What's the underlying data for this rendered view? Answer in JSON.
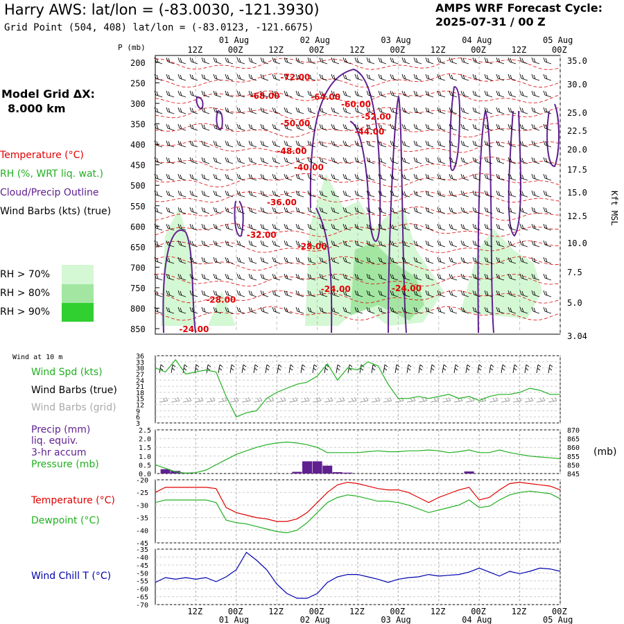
{
  "header": {
    "title": "Harry AWS:  lat/lon = (-83.0030, -121.3930)",
    "subtitle": "Grid Point (504, 408) lat/lon = (-83.0123, -121.6675)",
    "cycle_line1": "AMPS WRF Forecast Cycle:",
    "cycle_line2": "2025-07-31 / 00  Z",
    "grid_label": "Model Grid ΔX:",
    "grid_value": "8.000 km"
  },
  "legend": {
    "temperature": "Temperature (°C)",
    "rh": "RH (%, WRT liq. wat.)",
    "cloud": "Cloud/Precip Outline",
    "wind": "Wind Barbs (kts) (true)",
    "rh70": "RH > 70%",
    "rh80": "RH > 80%",
    "rh90": "RH > 90%"
  },
  "colors": {
    "temperature": "#e00000",
    "rh": "#20b020",
    "cloud": "#602090",
    "rh70": "#d4f7d4",
    "rh80": "#a2e6a2",
    "rh90": "#30d030",
    "windchill": "#0000b0",
    "grid": "#999999"
  },
  "time_axis": {
    "top_hour_labels": [
      "12Z",
      "00Z",
      "12Z",
      "00Z",
      "12Z",
      "00Z",
      "12Z",
      "00Z",
      "12Z",
      "00Z"
    ],
    "top_date_labels": [
      "01 Aug",
      "02 Aug",
      "03 Aug",
      "04 Aug",
      "05 Aug"
    ],
    "bottom_hour_labels": [
      "12Z",
      "00Z",
      "12Z",
      "00Z",
      "12Z",
      "00Z",
      "12Z",
      "00Z",
      "12Z",
      "00Z"
    ],
    "bottom_date_labels": [
      "01 Aug",
      "02 Aug",
      "03 Aug",
      "04 Aug",
      "05 Aug"
    ],
    "hours": [
      12,
      24,
      36,
      48,
      60,
      72,
      84,
      96,
      108,
      120
    ],
    "range_hours": [
      0,
      120
    ]
  },
  "chart_data": [
    {
      "type": "line",
      "name": "cross-section",
      "ylabel": "P (mb)",
      "ylabel_right": "Kft MSL",
      "y_ticks": [
        "200",
        "250",
        "300",
        "350",
        "400",
        "450",
        "500",
        "550",
        "600",
        "650",
        "700",
        "750",
        "800",
        "850"
      ],
      "y_ticks_right": [
        "35.0",
        "30.0",
        "25.0",
        "22.5",
        "20.0",
        "17.5",
        "15.0",
        "12.5",
        "10.0",
        "7.5",
        "5.0",
        "3.04"
      ],
      "contour_labels": [
        "-72.00",
        "-68.00",
        "-64.00",
        "-60.00",
        "-52.00",
        "-50.00",
        "-44.00",
        "-48.00",
        "-40.00",
        "-36.00",
        "-32.00",
        "-28.00",
        "-24.00",
        "-24.00",
        "-28.00",
        "-24.00"
      ],
      "contour_label_positions": [
        [
          42,
          235
        ],
        [
          33,
          280
        ],
        [
          51,
          283
        ],
        [
          60,
          301
        ],
        [
          66,
          331
        ],
        [
          42,
          347
        ],
        [
          64,
          368
        ],
        [
          41,
          415
        ],
        [
          46,
          455
        ],
        [
          38,
          540
        ],
        [
          32,
          620
        ],
        [
          47,
          648
        ],
        [
          54,
          752
        ],
        [
          75,
          750
        ],
        [
          20,
          778
        ],
        [
          12,
          850
        ]
      ]
    },
    {
      "type": "line",
      "name": "wind",
      "panel_label": "Wind at 10 m",
      "series": [
        {
          "name": "Wind Spd (kts)",
          "x": [
            0,
            3,
            6,
            9,
            12,
            15,
            18,
            21,
            24,
            27,
            30,
            33,
            36,
            39,
            42,
            45,
            48,
            51,
            54,
            57,
            60,
            63,
            66,
            69,
            72,
            75,
            78,
            81,
            84,
            87,
            90,
            93,
            96,
            99,
            102,
            105,
            108,
            111,
            114,
            117,
            120
          ],
          "values": [
            30,
            28,
            34,
            27,
            28,
            29,
            28,
            16,
            6,
            8,
            9,
            15,
            18,
            20,
            22,
            23,
            26,
            32,
            24,
            30,
            29,
            33,
            31,
            22,
            15,
            15,
            16,
            15,
            16,
            17,
            15,
            16,
            14,
            16,
            17,
            17,
            18,
            20,
            19,
            17,
            17
          ]
        }
      ],
      "series_labels": [
        "Wind Spd (kts)",
        "Wind Barbs (true)",
        "Wind Barbs (grid)"
      ],
      "y_ticks": [
        "36",
        "33",
        "30",
        "27",
        "24",
        "21",
        "18",
        "15",
        "12",
        "9",
        "6",
        "3"
      ],
      "ylim": [
        3,
        36
      ]
    },
    {
      "type": "bar",
      "name": "precip-pressure",
      "series_labels": [
        "Precip (mm)",
        "liq. equiv.",
        "3-hr accum",
        "Pressure (mb)"
      ],
      "precip": {
        "x": [
          3,
          6,
          9,
          42,
          45,
          48,
          51,
          54,
          57,
          93
        ],
        "values": [
          0.25,
          0.15,
          0.05,
          0.1,
          0.7,
          0.7,
          0.45,
          0.08,
          0.05,
          0.12
        ]
      },
      "pressure": {
        "x": [
          0,
          3,
          6,
          9,
          12,
          15,
          18,
          21,
          24,
          27,
          30,
          33,
          36,
          39,
          42,
          45,
          48,
          51,
          54,
          57,
          60,
          63,
          66,
          69,
          72,
          75,
          78,
          81,
          84,
          87,
          90,
          93,
          96,
          99,
          102,
          105,
          108,
          111,
          114,
          117,
          120
        ],
        "values": [
          850,
          848,
          846,
          845.2,
          845.5,
          847,
          850,
          853,
          856,
          858,
          860,
          861.5,
          862.5,
          863,
          862.5,
          861.5,
          860,
          857,
          857,
          857,
          857,
          857.5,
          858,
          857.5,
          857.5,
          858,
          858,
          858.5,
          858,
          857,
          857.5,
          858.5,
          857,
          857,
          858.5,
          857,
          856,
          855,
          854.5,
          854,
          853.5
        ]
      },
      "y_ticks_left": [
        "2.5",
        "2.0",
        "1.5",
        "1.0",
        "0.5",
        "0.0"
      ],
      "y_ticks_right": [
        "870",
        "865",
        "860",
        "855",
        "850",
        "845"
      ],
      "ylim_left": [
        0,
        2.5
      ],
      "ylim_right": [
        845,
        870
      ],
      "unit_right": "(mb)"
    },
    {
      "type": "line",
      "name": "temperature",
      "series": [
        {
          "name": "Temperature (°C)",
          "x": [
            0,
            3,
            6,
            9,
            12,
            15,
            18,
            21,
            24,
            27,
            30,
            33,
            36,
            39,
            42,
            45,
            48,
            51,
            54,
            57,
            60,
            63,
            66,
            69,
            72,
            75,
            78,
            81,
            84,
            87,
            90,
            93,
            96,
            99,
            102,
            105,
            108,
            111,
            114,
            117,
            120
          ],
          "values": [
            -25,
            -23,
            -23,
            -23,
            -23,
            -23,
            -23.5,
            -31,
            -33,
            -34,
            -35,
            -35.5,
            -36.5,
            -36.5,
            -35.5,
            -33,
            -29,
            -25,
            -22,
            -21,
            -21.5,
            -22.5,
            -23.5,
            -24,
            -24,
            -25,
            -27,
            -29,
            -27,
            -25.5,
            -24,
            -23,
            -28,
            -27,
            -24,
            -21.5,
            -21,
            -21.5,
            -22,
            -22.5,
            -24
          ]
        },
        {
          "name": "Dewpoint (°C)",
          "x": [
            0,
            3,
            6,
            9,
            12,
            15,
            18,
            21,
            24,
            27,
            30,
            33,
            36,
            39,
            42,
            45,
            48,
            51,
            54,
            57,
            60,
            63,
            66,
            69,
            72,
            75,
            78,
            81,
            84,
            87,
            90,
            93,
            96,
            99,
            102,
            105,
            108,
            111,
            114,
            117,
            120
          ],
          "values": [
            -29,
            -28,
            -28,
            -28,
            -28,
            -28,
            -29,
            -36,
            -37,
            -37.5,
            -38.5,
            -39.5,
            -40.5,
            -41,
            -40,
            -37,
            -33,
            -29,
            -27,
            -26,
            -26.5,
            -27.5,
            -28.5,
            -28.5,
            -29,
            -30,
            -31.5,
            -33,
            -32,
            -31,
            -30,
            -28,
            -31,
            -30.5,
            -28,
            -26,
            -25,
            -24.5,
            -25,
            -25.5,
            -27.5
          ]
        }
      ],
      "y_ticks": [
        "-20",
        "-25",
        "-30",
        "-35",
        "-40",
        "-45"
      ],
      "ylim": [
        -45,
        -20
      ]
    },
    {
      "type": "line",
      "name": "windchill",
      "series": [
        {
          "name": "Wind Chill T (°C)",
          "x": [
            0,
            3,
            6,
            9,
            12,
            15,
            18,
            21,
            24,
            27,
            30,
            33,
            36,
            39,
            42,
            45,
            48,
            51,
            54,
            57,
            60,
            63,
            66,
            69,
            72,
            75,
            78,
            81,
            84,
            87,
            90,
            93,
            96,
            99,
            102,
            105,
            108,
            111,
            114,
            117,
            120
          ],
          "values": [
            -56,
            -53,
            -54,
            -53,
            -54,
            -53,
            -55.5,
            -52.5,
            -48,
            -37,
            -42,
            -48,
            -57,
            -63,
            -66,
            -66,
            -63,
            -56,
            -52.5,
            -51,
            -51,
            -52.5,
            -54,
            -56,
            -54,
            -53,
            -52.5,
            -51,
            -52,
            -51.5,
            -51,
            -49.5,
            -47,
            -49.5,
            -52,
            -49,
            -50.5,
            -49,
            -47,
            -47.5,
            -49
          ]
        }
      ],
      "y_ticks": [
        "-35",
        "-40",
        "-45",
        "-50",
        "-55",
        "-60",
        "-65",
        "-70"
      ],
      "ylim": [
        -70,
        -35
      ]
    }
  ]
}
